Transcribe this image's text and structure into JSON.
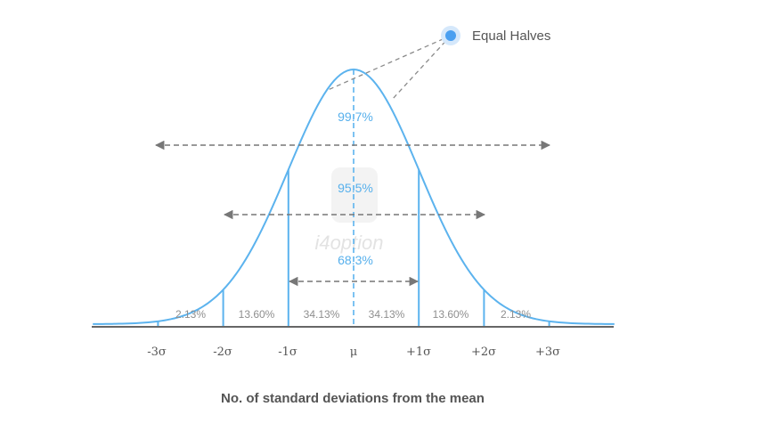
{
  "legend": {
    "label": "Equal Halves",
    "color": "#4a9ff0"
  },
  "colors": {
    "curve": "#5cb3ee",
    "text_blue": "#57b0ec",
    "arrow": "#777777",
    "axis": "#666666"
  },
  "watermark": {
    "text": "i4option"
  },
  "ranges": [
    {
      "label": "99.7%",
      "from": -3,
      "to": 3
    },
    {
      "label": "95.5%",
      "from": -2,
      "to": 2
    },
    {
      "label": "68.3%",
      "from": -1,
      "to": 1
    }
  ],
  "bands": [
    "2.13%",
    "13.60%",
    "34.13%",
    "34.13%",
    "13.60%",
    "2.13%"
  ],
  "ticks": [
    {
      "value": -3,
      "label": "-3σ"
    },
    {
      "value": -2,
      "label": "-2σ"
    },
    {
      "value": -1,
      "label": "-1σ"
    },
    {
      "value": 0,
      "label": "μ"
    },
    {
      "value": 1,
      "label": "+1σ"
    },
    {
      "value": 2,
      "label": "+2σ"
    },
    {
      "value": 3,
      "label": "+3σ"
    }
  ],
  "xlabel": "No. of standard deviations from the mean"
}
